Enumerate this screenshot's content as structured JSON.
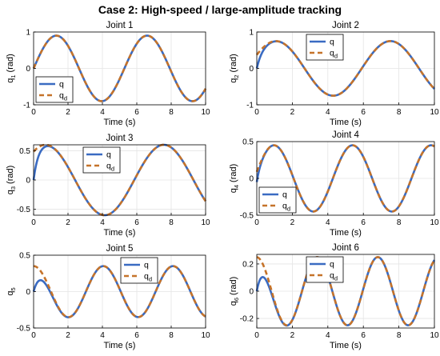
{
  "figure_title": "Case 2: High-speed / large-amplitude tracking",
  "colors": {
    "q": "#3a6bc2",
    "qd": "#c5732a",
    "grid": "#e4e4e4"
  },
  "chart_data": [
    {
      "type": "line",
      "title": "Joint 1",
      "xlabel": "Time (s)",
      "ylabel_main": "q",
      "ylabel_sub": "1",
      "ylabel_unit": " (rad)",
      "xlim": [
        0,
        10
      ],
      "ylim": [
        -1,
        1
      ],
      "xticks": [
        0,
        2,
        4,
        6,
        8,
        10
      ],
      "yticks": [
        -1,
        0,
        1
      ],
      "legend": [
        "q",
        "q_d"
      ],
      "legend_position": "bottom-left",
      "grid": true,
      "desired": {
        "amp": 0.9,
        "omega": 1.19,
        "phase": 0
      },
      "transient": {
        "q0": 0.0,
        "tau": 0.12
      }
    },
    {
      "type": "line",
      "title": "Joint 2",
      "xlabel": "Time (s)",
      "ylabel_main": "q",
      "ylabel_sub": "2",
      "ylabel_unit": " (rad)",
      "xlim": [
        0,
        10
      ],
      "ylim": [
        -1,
        1
      ],
      "xticks": [
        0,
        2,
        4,
        6,
        8,
        10
      ],
      "yticks": [
        -1,
        0,
        1
      ],
      "legend": [
        "q",
        "q_d"
      ],
      "legend_position": "top-left",
      "grid": true,
      "desired": {
        "amp": 0.75,
        "omega": 0.975,
        "phase": 0.52
      },
      "transient": {
        "q0": 0.0,
        "tau": 0.25
      }
    },
    {
      "type": "line",
      "title": "Joint 3",
      "xlabel": "Time (s)",
      "ylabel_main": "q",
      "ylabel_sub": "3",
      "ylabel_unit": " (rad)",
      "xlim": [
        0,
        10
      ],
      "ylim": [
        -0.6,
        0.6
      ],
      "xticks": [
        0,
        2,
        4,
        6,
        8,
        10
      ],
      "yticks": [
        -0.5,
        0,
        0.5
      ],
      "legend": [
        "q",
        "q_d"
      ],
      "legend_position": "top-left",
      "grid": true,
      "desired": {
        "amp": 0.6,
        "omega": 0.913,
        "phase": 0.94
      },
      "transient": {
        "q0": 0.0,
        "tau": 0.25
      }
    },
    {
      "type": "line",
      "title": "Joint 4",
      "xlabel": "Time (s)",
      "ylabel_main": "q",
      "ylabel_sub": "4",
      "ylabel_unit": " (rad)",
      "xlim": [
        0,
        10
      ],
      "ylim": [
        -0.5,
        0.5
      ],
      "xticks": [
        0,
        2,
        4,
        6,
        8,
        10
      ],
      "yticks": [
        -0.5,
        0,
        0.5
      ],
      "legend": [
        "q",
        "q_d"
      ],
      "legend_position": "bottom-left",
      "grid": true,
      "desired": {
        "amp": 0.45,
        "omega": 1.42,
        "phase": 0.2
      },
      "transient": {
        "q0": -0.05,
        "tau": 0.15
      }
    },
    {
      "type": "line",
      "title": "Joint 5",
      "xlabel": "Time (s)",
      "ylabel_main": "q",
      "ylabel_sub": "5",
      "ylabel_unit": "",
      "xlim": [
        0,
        10
      ],
      "ylim": [
        -0.5,
        0.5
      ],
      "xticks": [
        0,
        2,
        4,
        6,
        8,
        10
      ],
      "yticks": [
        -0.5,
        0,
        0.5
      ],
      "legend": [
        "q",
        "q_d"
      ],
      "legend_position": "top-right",
      "grid": true,
      "desired": {
        "amp": 0.35,
        "omega": 1.55,
        "phase": 1.571
      },
      "transient": {
        "q0": 0.0,
        "tau": 0.4
      }
    },
    {
      "type": "line",
      "title": "Joint 6",
      "xlabel": "Time (s)",
      "ylabel_main": "q",
      "ylabel_sub": "6",
      "ylabel_unit": " (rad)",
      "xlim": [
        0,
        10
      ],
      "ylim": [
        -0.27,
        0.27
      ],
      "xticks": [
        0,
        2,
        4,
        6,
        8,
        10
      ],
      "yticks": [
        -0.2,
        0,
        0.2
      ],
      "legend": [
        "q",
        "q_d"
      ],
      "legend_position": "top-left",
      "grid": true,
      "desired": {
        "amp": 0.25,
        "omega": 1.84,
        "phase": 1.6
      },
      "transient": {
        "q0": 0.0,
        "tau": 0.35
      }
    }
  ]
}
